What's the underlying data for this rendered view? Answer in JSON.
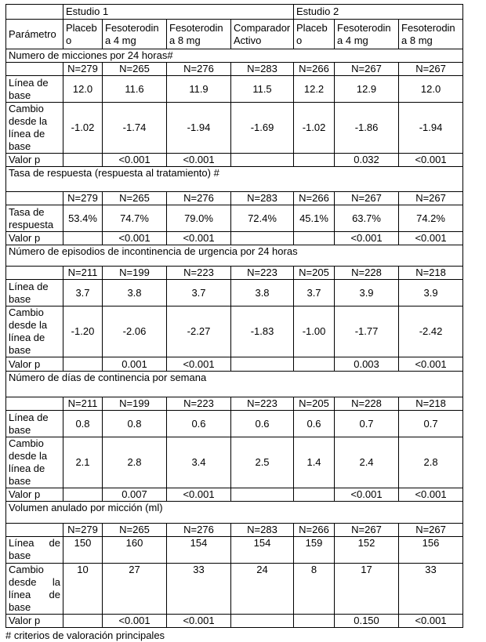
{
  "header": {
    "study1": "Estudio 1",
    "study2": "Estudio 2",
    "columns": [
      "Parámetro",
      "Placebo",
      "Fesoterodina 4 mg",
      "Fesoterodina 8 mg",
      "Comparador Activo",
      "Placebo",
      "Fesoterodina 4 mg",
      "Fesoterodina 8 mg"
    ]
  },
  "sections": [
    {
      "title": "Numero de micciones por 24 horas#",
      "n": [
        "N=279",
        "N=265",
        "N=276",
        "N=283",
        "N=266",
        "N=267",
        "N=267"
      ],
      "rows": [
        {
          "label": "Línea de base",
          "values": [
            "12.0",
            "11.6",
            "11.9",
            "11.5",
            "12.2",
            "12.9",
            "12.0"
          ]
        },
        {
          "label": "Cambio desde la línea de base",
          "values": [
            "-1.02",
            "-1.74",
            "-1.94",
            "-1.69",
            "-1.02",
            "-1.86",
            "-1.94"
          ]
        },
        {
          "label": "Valor p",
          "values": [
            "",
            "<0.001",
            "<0.001",
            "",
            "",
            "0.032",
            "<0.001"
          ]
        }
      ]
    },
    {
      "title": "Tasa de respuesta (respuesta al tratamiento) #",
      "n": [
        "N=279",
        "N=265",
        "N=276",
        "N=283",
        "N=266",
        "N=267",
        "N=267"
      ],
      "rows": [
        {
          "label": "Tasa de respuesta",
          "values": [
            "53.4%",
            "74.7%",
            "79.0%",
            "72.4%",
            "45.1%",
            "63.7%",
            "74.2%"
          ]
        },
        {
          "label": "Valor p",
          "values": [
            "",
            "<0.001",
            "<0.001",
            "",
            "",
            "<0.001",
            "<0.001"
          ]
        }
      ]
    },
    {
      "title": "Número de episodios de incontinencia de urgencia por 24 horas",
      "n": [
        "N=211",
        "N=199",
        "N=223",
        "N=223",
        "N=205",
        "N=228",
        "N=218"
      ],
      "rows": [
        {
          "label": "Línea de base",
          "values": [
            "3.7",
            "3.8",
            "3.7",
            "3.8",
            "3.7",
            "3.9",
            "3.9"
          ]
        },
        {
          "label": "Cambio desde la línea de base",
          "values": [
            "-1.20",
            "-2.06",
            "-2.27",
            "-1.83",
            "-1.00",
            "-1.77",
            "-2.42"
          ]
        },
        {
          "label": "Valor p",
          "values": [
            "",
            "0.001",
            "<0.001",
            "",
            "",
            "0.003",
            "<0.001"
          ]
        }
      ]
    },
    {
      "title": "Número de días de continencia por semana",
      "n": [
        "N=211",
        "N=199",
        "N=223",
        "N=223",
        "N=205",
        "N=228",
        "N=218"
      ],
      "rows": [
        {
          "label": "Línea de base",
          "values": [
            "0.8",
            "0.8",
            "0.6",
            "0.6",
            "0.6",
            "0.7",
            "0.7"
          ]
        },
        {
          "label": "Cambio desde la línea de base",
          "values": [
            "2.1",
            "2.8",
            "3.4",
            "2.5",
            "1.4",
            "2.4",
            "2.8"
          ]
        },
        {
          "label": "Valor p",
          "values": [
            "",
            "0.007",
            "<0.001",
            "",
            "",
            "<0.001",
            "<0.001"
          ]
        }
      ]
    },
    {
      "title": "Volumen anulado por micción (ml)",
      "n": [
        "N=279",
        "N=265",
        "N=276",
        "N=283",
        "N=266",
        "N=267",
        "N=267"
      ],
      "rows": [
        {
          "label": "Línea de base",
          "values": [
            "150",
            "160",
            "154",
            "154",
            "159",
            "152",
            "156"
          ]
        },
        {
          "label": "Cambio desde la línea de base",
          "values": [
            "10",
            "27",
            "33",
            "24",
            "8",
            "17",
            "33"
          ]
        },
        {
          "label": "Valor p",
          "values": [
            "",
            "<0.001",
            "<0.001",
            "",
            "",
            "0.150",
            "<0.001"
          ]
        }
      ]
    }
  ],
  "footnote": "# criterios de valoración principales"
}
